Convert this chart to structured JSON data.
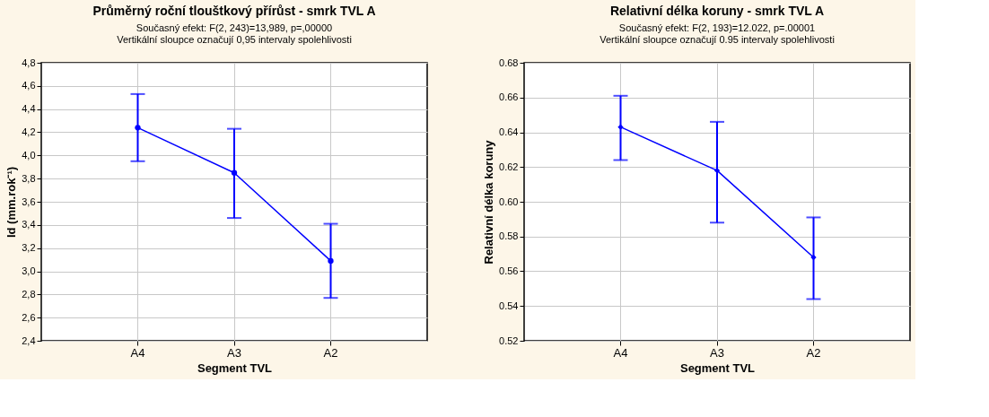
{
  "chart_data": [
    {
      "type": "line",
      "title": "Průměrný roční tlouštkový přírůst - smrk TVL A",
      "subtitle": "Současný efekt: F(2, 243)=13,989, p=,00000",
      "annotations": [
        "Vertikální sloupce označují 0,95 intervaly spolehlivosti"
      ],
      "xlabel": "Segment TVL",
      "ylabel": "Id (mm.rok⁻¹)",
      "categories": [
        "A4",
        "A3",
        "A2"
      ],
      "series": [
        {
          "color": "#0000ff",
          "values": [
            4.24,
            3.85,
            3.09
          ],
          "errors": [
            [
              3.95,
              4.53
            ],
            [
              3.46,
              4.23
            ],
            [
              2.77,
              3.41
            ]
          ]
        }
      ],
      "ylim": [
        2.4,
        4.8
      ],
      "yticks": [
        {
          "value": 2.4,
          "label": "2,4"
        },
        {
          "value": 2.6,
          "label": "2,6"
        },
        {
          "value": 2.8,
          "label": "2,8"
        },
        {
          "value": 3.0,
          "label": "3,0"
        },
        {
          "value": 3.2,
          "label": "3,2"
        },
        {
          "value": 3.4,
          "label": "3,4"
        },
        {
          "value": 3.6,
          "label": "3,6"
        },
        {
          "value": 3.8,
          "label": "3,8"
        },
        {
          "value": 4.0,
          "label": "4,0"
        },
        {
          "value": 4.2,
          "label": "4,2"
        },
        {
          "value": 4.4,
          "label": "4,4"
        },
        {
          "value": 4.6,
          "label": "4,6"
        },
        {
          "value": 4.8,
          "label": "4,8"
        }
      ],
      "grid": true,
      "marker": "circle"
    },
    {
      "type": "line",
      "title": "Relativní délka koruny - smrk TVL A",
      "subtitle": "Současný efekt: F(2, 193)=12.022, p=.00001",
      "annotations": [
        "Vertikální sloupce označují 0.95 intervaly spolehlivosti"
      ],
      "xlabel": "Segment TVL",
      "ylabel": "Relativní délka koruny",
      "categories": [
        "A4",
        "A3",
        "A2"
      ],
      "series": [
        {
          "color": "#0000ff",
          "values": [
            0.643,
            0.618,
            0.568
          ],
          "errors": [
            [
              0.624,
              0.661
            ],
            [
              0.588,
              0.646
            ],
            [
              0.544,
              0.591
            ]
          ]
        }
      ],
      "ylim": [
        0.52,
        0.68
      ],
      "yticks": [
        0.52,
        0.54,
        0.56,
        0.58,
        {
          "value": 0.6,
          "label": "0.60"
        },
        0.62,
        0.64,
        0.66,
        0.68
      ],
      "grid": true,
      "marker": "diamond"
    }
  ]
}
